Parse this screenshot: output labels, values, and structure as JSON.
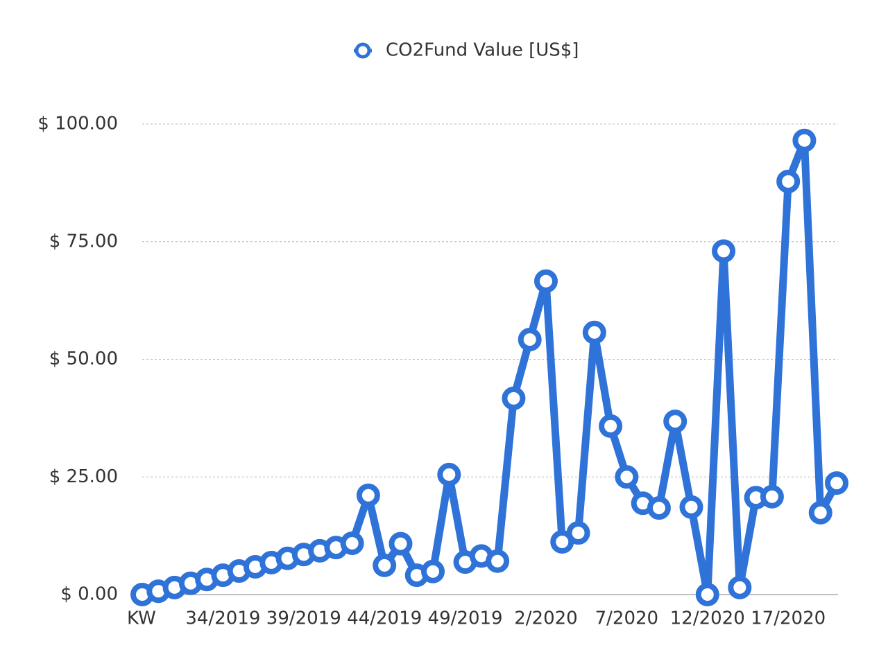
{
  "chart_data": {
    "type": "line",
    "categories": [
      "KW",
      null,
      null,
      null,
      null,
      "34/2019",
      null,
      null,
      null,
      null,
      "39/2019",
      null,
      null,
      null,
      null,
      "44/2019",
      null,
      null,
      null,
      null,
      "49/2019",
      null,
      null,
      null,
      null,
      "2/2020",
      null,
      null,
      null,
      null,
      "7/2020",
      null,
      null,
      null,
      null,
      "12/2020",
      null,
      null,
      null,
      null,
      "17/2020",
      null,
      null,
      null
    ],
    "series": [
      {
        "name": "CO2Fund Value [US$]",
        "color": "#2f73d8",
        "values": [
          0,
          0.7,
          1.5,
          2.4,
          3.2,
          4.1,
          5.0,
          5.9,
          6.8,
          7.7,
          8.5,
          9.3,
          10.0,
          10.9,
          21.1,
          6.2,
          10.8,
          4.1,
          4.9,
          25.5,
          6.9,
          8.2,
          7.1,
          41.7,
          54.2,
          66.6,
          11.2,
          13.1,
          55.7,
          35.8,
          25.0,
          19.4,
          18.4,
          36.8,
          18.6,
          0,
          73.0,
          1.5,
          20.6,
          20.8,
          87.8,
          96.5,
          17.4,
          23.7
        ]
      }
    ],
    "ylim": [
      0,
      100
    ],
    "yticks": [
      {
        "value": 0,
        "label": "$ 0.00"
      },
      {
        "value": 25,
        "label": "$ 25.00"
      },
      {
        "value": 50,
        "label": "$ 50.00"
      },
      {
        "value": 75,
        "label": "$ 75.00"
      },
      {
        "value": 100,
        "label": "$ 100.00"
      }
    ],
    "grid": true,
    "legend": "top"
  }
}
